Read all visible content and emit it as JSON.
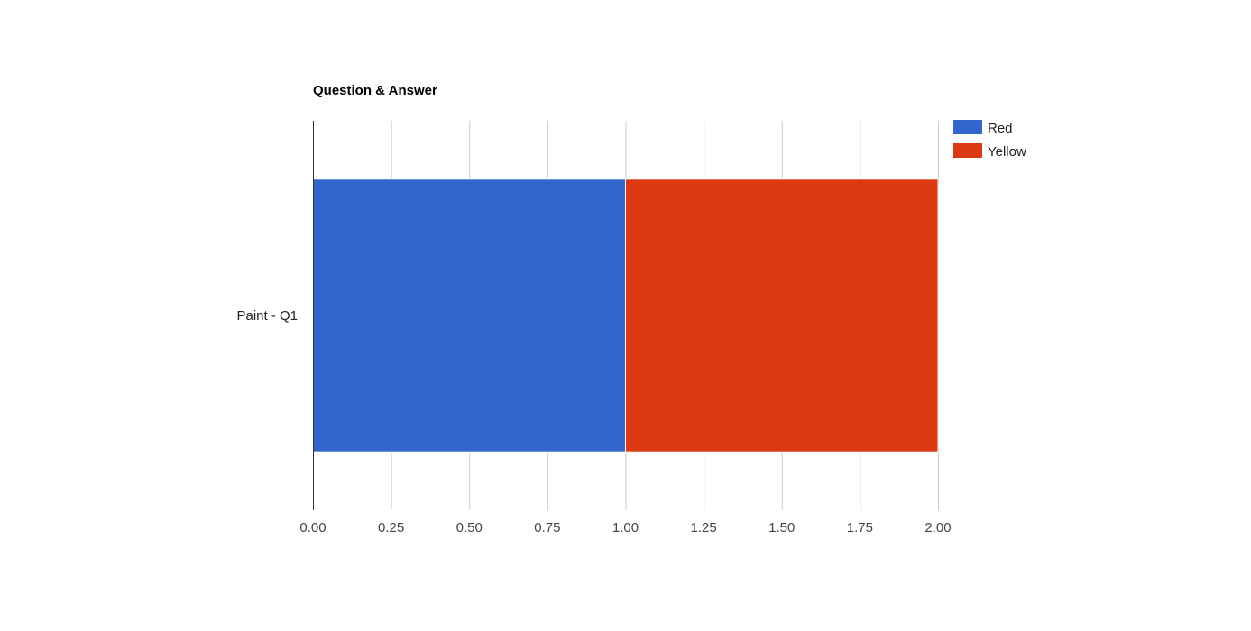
{
  "chart_data": {
    "type": "bar",
    "orientation": "horizontal",
    "stacked": true,
    "title": "Question & Answer",
    "xlabel": "",
    "ylabel": "",
    "categories": [
      "Paint - Q1"
    ],
    "series": [
      {
        "name": "Red",
        "values": [
          1
        ],
        "color": "#3366cc"
      },
      {
        "name": "Yellow",
        "values": [
          1
        ],
        "color": "#dc3912"
      }
    ],
    "xlim": [
      0,
      2
    ],
    "x_ticks": [
      "0.00",
      "0.25",
      "0.50",
      "0.75",
      "1.00",
      "1.25",
      "1.50",
      "1.75",
      "2.00"
    ],
    "grid": true,
    "legend_position": "right"
  }
}
